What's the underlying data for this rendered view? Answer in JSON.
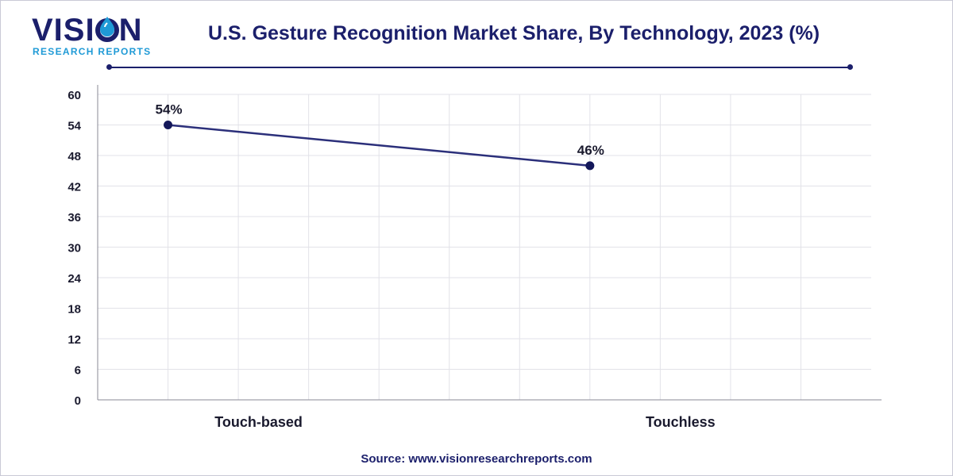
{
  "brand": {
    "name_part1": "VISI",
    "name_part2": "N",
    "tagline": "RESEARCH REPORTS",
    "primary_color": "#1b1f6b",
    "accent_color": "#1f9ad6"
  },
  "chart_data": {
    "type": "line",
    "title": "U.S. Gesture Recognition Market Share, By Technology, 2023 (%)",
    "categories": [
      "Touch-based",
      "Touchless"
    ],
    "series": [
      {
        "values": [
          54,
          46
        ],
        "labels": [
          "54%",
          "46%"
        ],
        "color": "#2b2f7a"
      }
    ],
    "ylim": [
      0,
      60
    ],
    "yticks": [
      0,
      6,
      12,
      18,
      24,
      30,
      36,
      42,
      48,
      54,
      60
    ],
    "grid": true,
    "xlabel": "",
    "ylabel": ""
  },
  "source": "Source: www.visionresearchreports.com"
}
